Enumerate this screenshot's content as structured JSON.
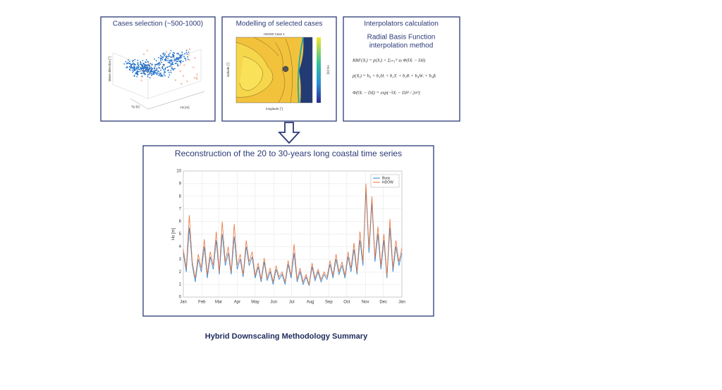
{
  "panels": [
    {
      "title": "Cases selection (~500-1000)",
      "labels": [
        "Wave direction [°]",
        "Tp [s]",
        "Hs [m]"
      ]
    },
    {
      "title": "Modelling of selected cases",
      "labels": [
        "HDOW Case 1",
        "longitude [°]",
        "latitude [°]",
        "Hs [m]"
      ]
    },
    {
      "title": "Interpolators calculation",
      "subtitle": [
        "Radial Basis Function",
        "interpolation method"
      ],
      "equations": [
        "RBF(Xᵢ) = p(Xᵢ) + Σⱼ₌₁ᴺ aⱼ Φ(‖Xᵢ − Dⱼ‖)",
        "p(Xᵢ) = b₀ + b₁Hᵢ + b₂Tᵢ + b₃θᵢ + b₄Wᵢ + b₅βᵢ",
        "Φ(‖Xᵢ − Dⱼ‖) = exp(−‖Xᵢ − Dⱼ‖² / 2σ²)"
      ]
    }
  ],
  "reconstruction": {
    "title": "Reconstruction of the 20 to 30-years long coastal time series"
  },
  "chart_data": {
    "type": "line",
    "ylabel": "Hs [m]",
    "x": [
      0,
      5,
      10,
      15,
      20,
      25,
      30,
      35,
      40,
      45,
      50,
      55,
      60,
      65,
      70,
      75,
      80,
      85,
      90,
      95,
      100,
      105,
      110,
      115,
      120,
      125,
      130,
      135,
      140,
      145,
      150,
      155,
      160,
      165,
      170,
      175,
      180,
      185,
      190,
      195,
      200,
      205,
      210,
      215,
      220,
      225,
      230,
      235,
      240,
      245,
      250,
      255,
      260,
      265,
      270,
      275,
      280,
      285,
      290,
      295,
      300,
      305,
      310,
      315,
      320,
      325,
      330,
      335,
      340,
      345,
      350,
      355,
      360,
      365
    ],
    "series": [
      {
        "name": "Buoy",
        "color": "#2f7fc8",
        "values": [
          3.5,
          2.0,
          5.5,
          2.5,
          1.2,
          3.0,
          2.0,
          4.0,
          1.5,
          3.2,
          2.2,
          4.5,
          1.8,
          5.0,
          2.5,
          3.5,
          1.8,
          4.8,
          2.2,
          3.0,
          1.6,
          4.0,
          2.5,
          3.2,
          1.5,
          2.4,
          1.2,
          2.8,
          1.3,
          2.0,
          1.0,
          2.2,
          1.4,
          1.8,
          1.0,
          2.6,
          1.5,
          3.5,
          1.2,
          2.0,
          1.0,
          1.6,
          0.9,
          2.4,
          1.3,
          2.0,
          1.2,
          1.8,
          1.4,
          2.6,
          1.5,
          3.0,
          1.8,
          2.5,
          1.5,
          3.2,
          2.0,
          3.8,
          1.8,
          4.5,
          2.5,
          8.5,
          3.5,
          7.5,
          2.8,
          5.0,
          2.2,
          4.5,
          1.5,
          5.5,
          2.0,
          4.0,
          2.5,
          3.5
        ]
      },
      {
        "name": "HDOW",
        "color": "#e8743b",
        "values": [
          3.8,
          2.3,
          6.5,
          2.8,
          1.5,
          3.4,
          2.3,
          4.6,
          1.8,
          3.6,
          2.5,
          5.2,
          2.0,
          6.0,
          2.8,
          4.0,
          2.0,
          5.8,
          2.5,
          3.4,
          1.8,
          4.5,
          2.8,
          3.6,
          1.7,
          2.7,
          1.4,
          3.1,
          1.5,
          2.3,
          1.2,
          2.5,
          1.6,
          2.0,
          1.2,
          2.9,
          1.7,
          4.2,
          1.4,
          2.3,
          1.2,
          1.8,
          1.0,
          2.7,
          1.5,
          2.2,
          1.4,
          2.0,
          1.6,
          2.9,
          1.7,
          3.4,
          2.0,
          2.8,
          1.7,
          3.6,
          2.3,
          4.3,
          2.0,
          5.2,
          2.8,
          9.0,
          3.9,
          8.0,
          3.1,
          5.6,
          2.5,
          5.0,
          1.7,
          6.2,
          2.3,
          4.5,
          2.8,
          3.9
        ]
      }
    ],
    "xlim": [
      0,
      365
    ],
    "xticks": [
      {
        "value": 0,
        "label": "Jan"
      },
      {
        "value": 31,
        "label": "Feb"
      },
      {
        "value": 59,
        "label": "Mar"
      },
      {
        "value": 90,
        "label": "Apr"
      },
      {
        "value": 120,
        "label": "May"
      },
      {
        "value": 151,
        "label": "Jun"
      },
      {
        "value": 181,
        "label": "Jul"
      },
      {
        "value": 212,
        "label": "Aug"
      },
      {
        "value": 243,
        "label": "Sep"
      },
      {
        "value": 273,
        "label": "Oct"
      },
      {
        "value": 304,
        "label": "Nov"
      },
      {
        "value": 334,
        "label": "Dec"
      },
      {
        "value": 365,
        "label": "Jan"
      }
    ],
    "ylim": [
      0,
      10
    ],
    "yticks": [
      0,
      1,
      2,
      3,
      4,
      5,
      6,
      7,
      8,
      9,
      10
    ],
    "grid": true,
    "legend": "upper right"
  },
  "caption": "Hybrid Downscaling Methodology Summary"
}
